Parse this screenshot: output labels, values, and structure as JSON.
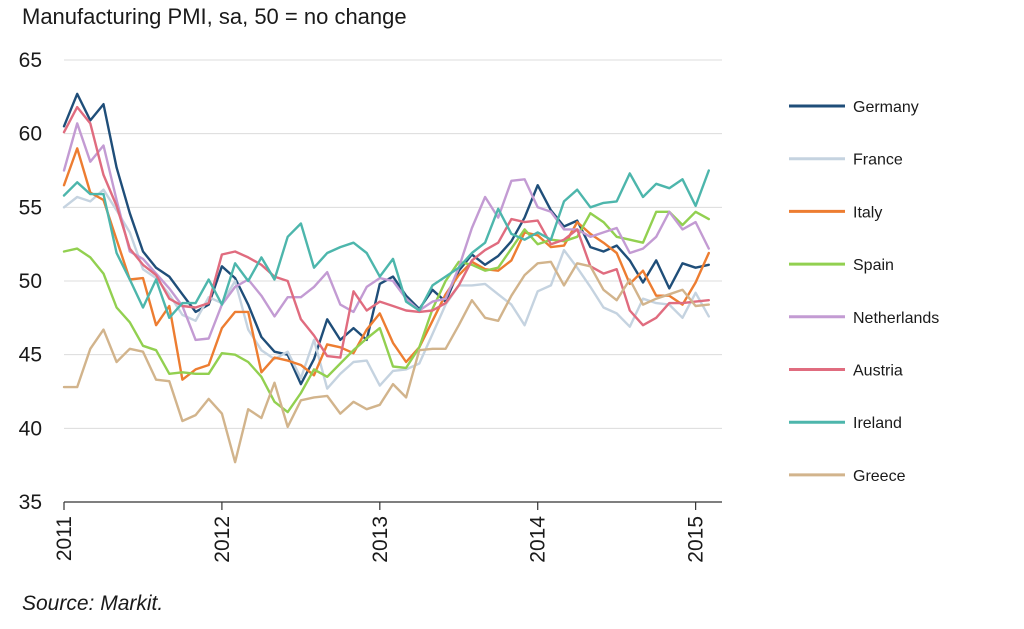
{
  "chart_data": {
    "type": "line",
    "title": "Manufacturing PMI, sa, 50 = no change",
    "source": "Source: Markit.",
    "xlabel": "",
    "ylabel": "",
    "ylim": [
      35,
      65
    ],
    "yticks": [
      35,
      40,
      45,
      50,
      55,
      60,
      65
    ],
    "x_start": 2011.0,
    "x_end": 2015.167,
    "x_step_months": 1,
    "xticks": [
      2011,
      2012,
      2013,
      2014,
      2015
    ],
    "grid": true,
    "legend_position": "right",
    "series": [
      {
        "name": "Germany",
        "color": "#1f4e79",
        "values": [
          60.5,
          62.7,
          60.9,
          62.0,
          57.7,
          54.6,
          52.0,
          50.9,
          50.3,
          49.1,
          47.9,
          48.4,
          51.0,
          50.2,
          48.4,
          46.2,
          45.2,
          45.0,
          43.0,
          44.7,
          47.4,
          46.0,
          46.8,
          46.0,
          49.8,
          50.3,
          49.0,
          48.1,
          49.4,
          48.6,
          50.7,
          51.8,
          51.1,
          51.7,
          52.7,
          54.3,
          56.5,
          54.8,
          53.7,
          54.1,
          52.3,
          52.0,
          52.4,
          51.4,
          49.9,
          51.4,
          49.5,
          51.2,
          50.9,
          51.1
        ]
      },
      {
        "name": "France",
        "color": "#c5d3e0",
        "values": [
          55.0,
          55.7,
          55.4,
          56.2,
          54.8,
          53.3,
          50.8,
          50.2,
          49.1,
          47.7,
          47.3,
          48.9,
          48.5,
          50.0,
          46.7,
          45.3,
          44.7,
          45.2,
          43.4,
          46.0,
          42.7,
          43.7,
          44.5,
          44.6,
          42.9,
          43.9,
          44.0,
          44.4,
          46.4,
          48.4,
          49.7,
          49.7,
          49.8,
          49.1,
          48.4,
          47.0,
          49.3,
          49.7,
          52.1,
          50.9,
          49.6,
          48.2,
          47.8,
          46.9,
          48.8,
          48.5,
          48.4,
          47.5,
          49.2,
          47.6
        ]
      },
      {
        "name": "Italy",
        "color": "#ed7d31",
        "values": [
          56.5,
          59.0,
          56.0,
          55.5,
          52.8,
          50.1,
          50.2,
          47.0,
          48.3,
          43.3,
          44.0,
          44.3,
          46.8,
          47.9,
          47.9,
          43.8,
          44.8,
          44.6,
          44.3,
          43.6,
          45.7,
          45.5,
          45.1,
          46.7,
          47.8,
          45.8,
          44.5,
          45.5,
          47.3,
          49.1,
          50.4,
          51.3,
          50.8,
          50.7,
          51.4,
          53.3,
          53.1,
          52.3,
          52.4,
          54.0,
          53.2,
          52.6,
          51.9,
          49.8,
          50.7,
          49.0,
          49.0,
          48.4,
          49.9,
          51.9
        ]
      },
      {
        "name": "Spain",
        "color": "#92d050",
        "values": [
          52.0,
          52.2,
          51.6,
          50.5,
          48.2,
          47.2,
          45.6,
          45.3,
          43.7,
          43.8,
          43.7,
          43.7,
          45.1,
          45.0,
          44.5,
          43.5,
          41.8,
          41.1,
          42.4,
          44.0,
          43.5,
          44.4,
          45.3,
          46.1,
          46.8,
          44.2,
          44.1,
          45.5,
          48.1,
          50.0,
          51.3,
          51.1,
          50.7,
          50.9,
          52.2,
          53.5,
          52.5,
          52.8,
          52.7,
          53.0,
          54.6,
          54.0,
          53.0,
          52.8,
          52.6,
          54.7,
          54.7,
          53.8,
          54.7,
          54.2
        ]
      },
      {
        "name": "Netherlands",
        "color": "#c39bd3",
        "values": [
          57.5,
          60.7,
          58.1,
          59.2,
          55.5,
          52.0,
          51.5,
          50.5,
          49.5,
          48.3,
          46.0,
          46.1,
          48.4,
          49.6,
          50.1,
          49.0,
          47.6,
          48.9,
          48.9,
          49.6,
          50.6,
          48.4,
          47.9,
          49.6,
          50.2,
          50.0,
          48.8,
          48.0,
          48.6,
          48.8,
          50.9,
          53.6,
          55.7,
          54.3,
          56.8,
          56.9,
          55.0,
          54.7,
          53.5,
          53.5,
          53.0,
          53.3,
          53.6,
          51.9,
          52.2,
          53.0,
          54.7,
          53.5,
          54.0,
          52.2
        ]
      },
      {
        "name": "Austria",
        "color": "#e06c7f",
        "values": [
          60.1,
          61.8,
          60.7,
          57.2,
          55.1,
          52.2,
          51.1,
          50.4,
          48.8,
          48.3,
          48.2,
          48.5,
          51.8,
          52.0,
          51.6,
          51.1,
          50.3,
          50.0,
          47.4,
          46.3,
          44.9,
          44.8,
          49.3,
          48.0,
          48.6,
          48.3,
          48.0,
          47.9,
          48.0,
          48.5,
          49.7,
          51.4,
          52.1,
          52.6,
          54.2,
          54.0,
          54.1,
          52.5,
          52.8,
          53.5,
          51.0,
          50.5,
          50.8,
          48.0,
          47.0,
          47.5,
          48.5,
          48.5,
          48.6,
          48.7
        ]
      },
      {
        "name": "Ireland",
        "color": "#4db6ac",
        "values": [
          55.8,
          56.7,
          55.9,
          55.9,
          51.9,
          50.1,
          48.2,
          50.1,
          47.5,
          48.5,
          48.5,
          50.1,
          48.4,
          51.2,
          50.0,
          51.6,
          50.1,
          53.0,
          53.9,
          50.9,
          51.9,
          52.3,
          52.6,
          51.9,
          50.3,
          51.5,
          48.6,
          48.0,
          49.7,
          50.3,
          50.9,
          51.9,
          52.6,
          54.9,
          53.2,
          52.8,
          53.3,
          52.8,
          55.4,
          56.2,
          55.0,
          55.3,
          55.4,
          57.3,
          55.7,
          56.6,
          56.3,
          56.9,
          55.1,
          57.5
        ]
      },
      {
        "name": "Greece",
        "color": "#d2b48c",
        "values": [
          42.8,
          42.8,
          45.4,
          46.7,
          44.5,
          45.4,
          45.2,
          43.3,
          43.2,
          40.5,
          40.9,
          42.0,
          41.0,
          37.7,
          41.3,
          40.7,
          43.1,
          40.1,
          41.9,
          42.1,
          42.2,
          41.0,
          41.8,
          41.3,
          41.6,
          43.0,
          42.1,
          45.3,
          45.4,
          45.4,
          47.0,
          48.7,
          47.5,
          47.3,
          49.0,
          50.4,
          51.2,
          51.3,
          49.7,
          51.2,
          51.0,
          49.4,
          48.7,
          50.1,
          48.4,
          48.8,
          49.1,
          49.4,
          48.3,
          48.4
        ]
      }
    ]
  }
}
